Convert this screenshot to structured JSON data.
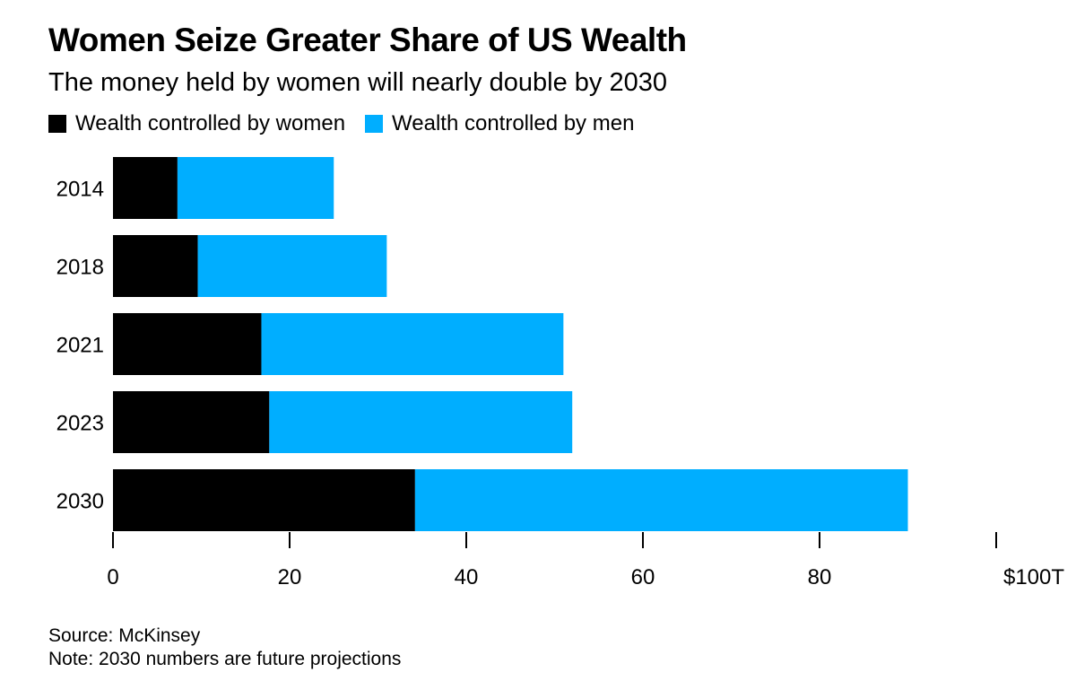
{
  "chart_data": {
    "type": "bar",
    "orientation": "horizontal",
    "stacked": true,
    "title": "Women Seize Greater Share of US Wealth",
    "subtitle": "The money held by women will nearly double by 2030",
    "categories": [
      "2014",
      "2018",
      "2021",
      "2023",
      "2030"
    ],
    "series": [
      {
        "name": "Wealth controlled by women",
        "color": "#000000",
        "values": [
          7.3,
          9.6,
          16.8,
          17.7,
          34.2
        ]
      },
      {
        "name": "Wealth controlled by men",
        "color": "#00aeff",
        "values": [
          17.7,
          21.4,
          34.2,
          34.3,
          55.8
        ]
      }
    ],
    "xlim": [
      0,
      100
    ],
    "x_ticks": [
      0,
      20,
      40,
      60,
      80,
      100
    ],
    "x_tick_labels": [
      "0",
      "20",
      "40",
      "60",
      "80",
      "$100T"
    ],
    "legend_position": "top-left",
    "grid": false
  },
  "footer": {
    "source": "Source: McKinsey",
    "note": "Note: 2030 numbers are future projections"
  }
}
